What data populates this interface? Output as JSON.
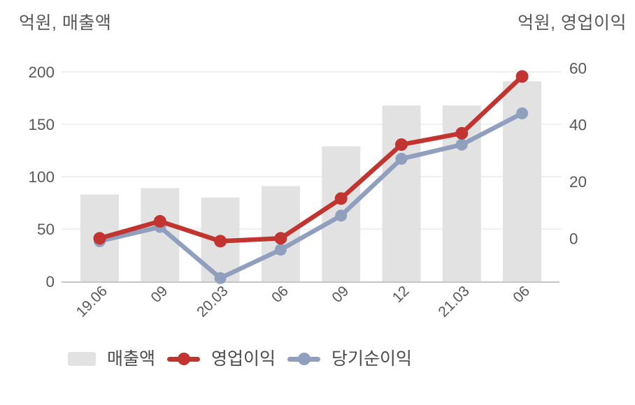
{
  "chart_data": {
    "type": "bar+line combo, dual y-axis",
    "categories": [
      "19.06",
      "09",
      "20.03",
      "06",
      "09",
      "12",
      "21.03",
      "06"
    ],
    "series": [
      {
        "name": "매출액",
        "type": "bar",
        "axis": "left",
        "color": "#e2e2e2",
        "values": [
          83,
          89,
          80,
          91,
          129,
          168,
          168,
          191
        ]
      },
      {
        "name": "영업이익",
        "type": "line",
        "axis": "right",
        "color": "#c1342f",
        "values": [
          0,
          6,
          -1,
          0,
          14,
          33,
          37,
          57
        ]
      },
      {
        "name": "당기순이익",
        "type": "line",
        "axis": "right",
        "color": "#909fbe",
        "values": [
          -1,
          4,
          -14,
          -4,
          8,
          28,
          33,
          44
        ]
      }
    ],
    "left_axis": {
      "title": "억원, 매출액",
      "ticks": [
        0,
        50,
        100,
        150,
        200
      ],
      "range": [
        0,
        200
      ]
    },
    "right_axis": {
      "title": "억원, 영업이익",
      "ticks": [
        0,
        20,
        40,
        60
      ],
      "range": [
        -15.4,
        60
      ]
    },
    "grid": true,
    "legend_position": "bottom"
  },
  "legend": {
    "items": [
      {
        "label": "매출액",
        "marker": "bar"
      },
      {
        "label": "영업이익",
        "marker": "line-red"
      },
      {
        "label": "당기순이익",
        "marker": "line-blue"
      }
    ]
  },
  "colors": {
    "revenue_bar": "#e2e2e2",
    "operating_profit_line": "#c1342f",
    "net_profit_line": "#909fbe",
    "gridline": "#e7e7e7",
    "axis_line": "#b3b3b3",
    "tick_text": "#585858",
    "legend_text": "#4b4b4b"
  }
}
